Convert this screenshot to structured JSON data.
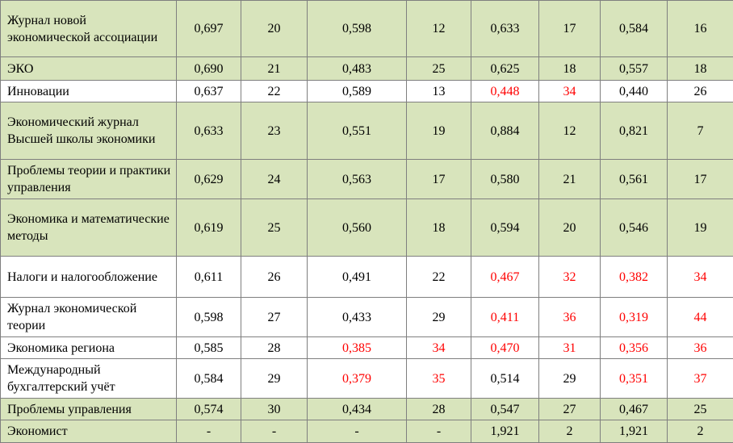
{
  "table": {
    "highlight_color": "#d8e4bc",
    "alert_color": "#ff0000",
    "rows": [
      {
        "cells": [
          "Журнал новой экономической ассоциации",
          "0,697",
          "20",
          "0,598",
          "12",
          "0,633",
          "17",
          "0,584",
          "16"
        ],
        "highlight": true,
        "red_cells": []
      },
      {
        "cells": [
          "ЭКО",
          "0,690",
          "21",
          "0,483",
          "25",
          "0,625",
          "18",
          "0,557",
          "18"
        ],
        "highlight": true,
        "red_cells": []
      },
      {
        "cells": [
          "Инновации",
          "0,637",
          "22",
          "0,589",
          "13",
          "0,448",
          "34",
          "0,440",
          "26"
        ],
        "highlight": false,
        "red_cells": [
          5,
          6
        ]
      },
      {
        "cells": [
          "Экономический журнал Высшей школы экономики",
          "0,633",
          "23",
          "0,551",
          "19",
          "0,884",
          "12",
          "0,821",
          "7"
        ],
        "highlight": true,
        "red_cells": []
      },
      {
        "cells": [
          "Проблемы теории и практики управления",
          "0,629",
          "24",
          "0,563",
          "17",
          "0,580",
          "21",
          "0,561",
          "17"
        ],
        "highlight": true,
        "red_cells": []
      },
      {
        "cells": [
          "Экономика и математические методы",
          "0,619",
          "25",
          "0,560",
          "18",
          "0,594",
          "20",
          "0,546",
          "19"
        ],
        "highlight": true,
        "red_cells": []
      },
      {
        "cells": [
          "Налоги и налогообложение",
          "0,611",
          "26",
          "0,491",
          "22",
          "0,467",
          "32",
          "0,382",
          "34"
        ],
        "highlight": false,
        "red_cells": [
          5,
          6,
          7,
          8
        ]
      },
      {
        "cells": [
          "Журнал экономической теории",
          "0,598",
          "27",
          "0,433",
          "29",
          "0,411",
          "36",
          "0,319",
          "44"
        ],
        "highlight": false,
        "red_cells": [
          5,
          6,
          7,
          8
        ]
      },
      {
        "cells": [
          "Экономика региона",
          "0,585",
          "28",
          "0,385",
          "34",
          "0,470",
          "31",
          "0,356",
          "36"
        ],
        "highlight": false,
        "red_cells": [
          3,
          4,
          5,
          6,
          7,
          8
        ]
      },
      {
        "cells": [
          "Международный бухгалтерский учёт",
          "0,584",
          "29",
          "0,379",
          "35",
          "0,514",
          "29",
          "0,351",
          "37"
        ],
        "highlight": false,
        "red_cells": [
          3,
          4,
          7,
          8
        ]
      },
      {
        "cells": [
          "Проблемы управления",
          "0,574",
          "30",
          "0,434",
          "28",
          "0,547",
          "27",
          "0,467",
          "25"
        ],
        "highlight": true,
        "red_cells": []
      },
      {
        "cells": [
          "Экономист",
          "-",
          "-",
          "-",
          "-",
          "1,921",
          "2",
          "1,921",
          "2"
        ],
        "highlight": true,
        "red_cells": []
      }
    ]
  }
}
